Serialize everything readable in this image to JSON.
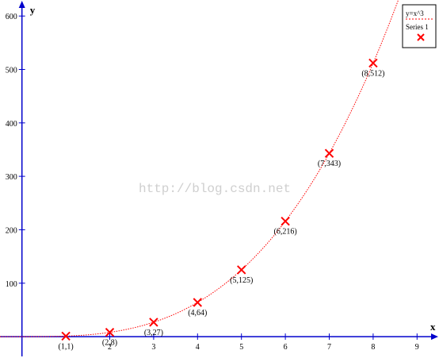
{
  "chart_data": {
    "type": "line",
    "function_label": "y=x^3",
    "xlabel": "x",
    "ylabel": "y",
    "xlim": [
      -0.5,
      9.5
    ],
    "ylim": [
      -40,
      630
    ],
    "x_ticks": [
      2,
      3,
      4,
      5,
      6,
      7,
      8,
      9
    ],
    "y_ticks": [
      100,
      200,
      300,
      400,
      500,
      600
    ],
    "curve": {
      "name": "y=x^3",
      "style": "dotted",
      "color": "#ff0000"
    },
    "series": [
      {
        "name": "Series 1",
        "marker": "x",
        "color": "#ff0000",
        "points": [
          {
            "x": 1,
            "y": 1,
            "label": "(1,1)"
          },
          {
            "x": 2,
            "y": 8,
            "label": "(2,8)"
          },
          {
            "x": 3,
            "y": 27,
            "label": "(3,27)"
          },
          {
            "x": 4,
            "y": 64,
            "label": "(4,64)"
          },
          {
            "x": 5,
            "y": 125,
            "label": "(5,125)"
          },
          {
            "x": 6,
            "y": 216,
            "label": "(6,216)"
          },
          {
            "x": 7,
            "y": 343,
            "label": "(7,343)"
          },
          {
            "x": 8,
            "y": 512,
            "label": "(8,512)"
          }
        ]
      }
    ],
    "legend": {
      "position": "top-right",
      "entries": [
        "y=x^3",
        "Series 1"
      ]
    },
    "grid": false,
    "axis_color": "#0000cc"
  },
  "watermark": "http://blog.csdn.net"
}
